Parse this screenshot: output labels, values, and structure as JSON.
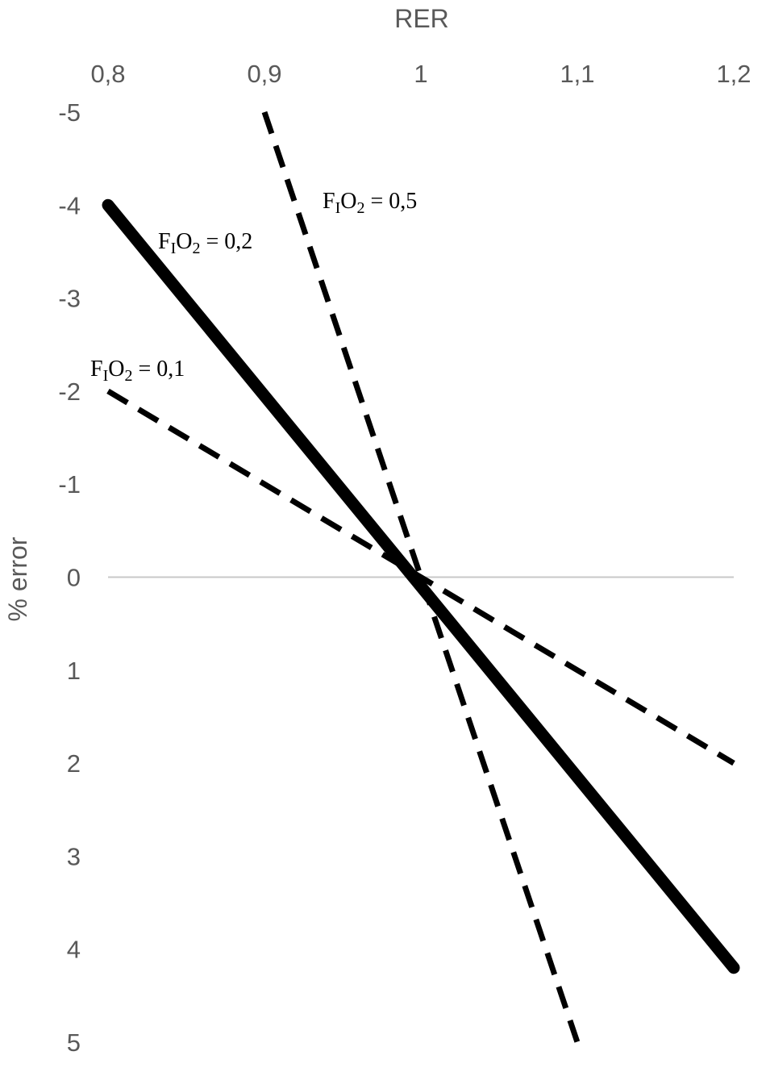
{
  "chart_data": {
    "type": "line",
    "xlabel": "RER",
    "ylabel": "% error",
    "xlim": [
      0.8,
      1.2
    ],
    "ylim": [
      -5,
      5
    ],
    "y_reversed": true,
    "x_axis_position": "top",
    "x_ticks": [
      0.8,
      0.9,
      1.0,
      1.1,
      1.2
    ],
    "x_tick_labels": [
      "0,8",
      "0,9",
      "1",
      "1,1",
      "1,2"
    ],
    "y_ticks": [
      -5,
      -4,
      -3,
      -2,
      -1,
      0,
      1,
      2,
      3,
      4,
      5
    ],
    "y_tick_labels": [
      "-5",
      "-4",
      "-3",
      "-2",
      "-1",
      "0",
      "1",
      "2",
      "3",
      "4",
      "5"
    ],
    "grid": false,
    "zero_line": true,
    "colors": {
      "line": "#000000",
      "zero_line": "#c8c8c8",
      "text": "#595959"
    },
    "series": [
      {
        "label_main": "F",
        "label_sub1": "I",
        "label_mid": "O",
        "label_sub2": "2",
        "label_value": " = 0,1",
        "style": "dashed",
        "x": [
          0.8,
          1.2
        ],
        "y": [
          -2.0,
          2.0
        ]
      },
      {
        "label_main": "F",
        "label_sub1": "I",
        "label_mid": "O",
        "label_sub2": "2",
        "label_value": " = 0,2",
        "style": "solid-thick",
        "x": [
          0.8,
          1.2
        ],
        "y": [
          -4.0,
          4.2
        ]
      },
      {
        "label_main": "F",
        "label_sub1": "I",
        "label_mid": "O",
        "label_sub2": "2",
        "label_value": " = 0,5",
        "style": "dashed",
        "x": [
          0.9,
          1.1
        ],
        "y": [
          -5.0,
          5.0
        ]
      }
    ]
  }
}
